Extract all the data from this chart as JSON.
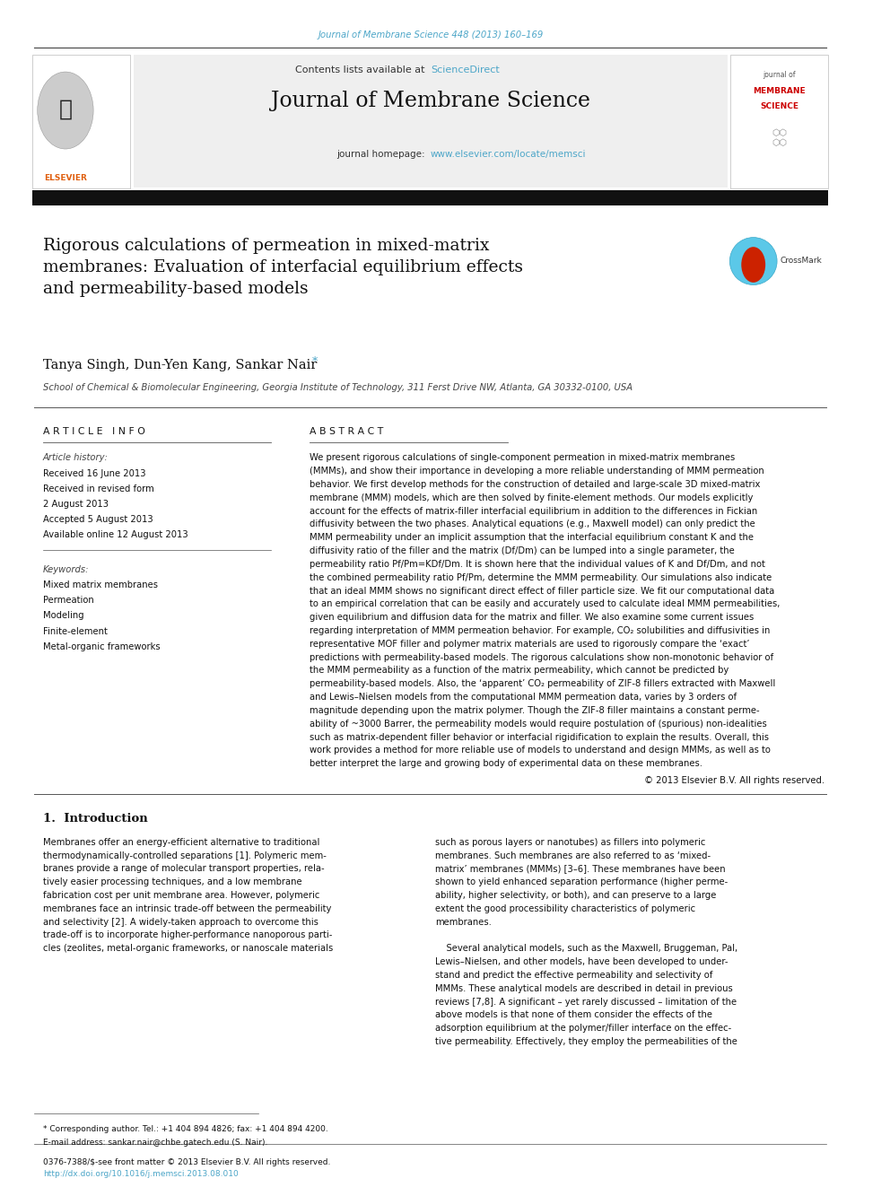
{
  "page_width": 9.92,
  "page_height": 13.23,
  "bg_color": "#ffffff",
  "journal_ref_text": "Journal of Membrane Science 448 (2013) 160–169",
  "journal_ref_color": "#4da6c8",
  "header_bg": "#efefef",
  "contents_text": "Contents lists available at ",
  "sciencedirect_text": "ScienceDirect",
  "sciencedirect_color": "#4da6c8",
  "journal_title": "Journal of Membrane Science",
  "journal_homepage_text": "journal homepage: ",
  "journal_url": "www.elsevier.com/locate/memsci",
  "journal_url_color": "#4da6c8",
  "thick_bar_color": "#111111",
  "paper_title": "Rigorous calculations of permeation in mixed-matrix\nmembranes: Evaluation of interfacial equilibrium effects\nand permeability-based models",
  "authors": "Tanya Singh, Dun-Yen Kang, Sankar Nair",
  "affiliation": "School of Chemical & Biomolecular Engineering, Georgia Institute of Technology, 311 Ferst Drive NW, Atlanta, GA 30332-0100, USA",
  "article_info_title": "A R T I C L E   I N F O",
  "abstract_title": "A B S T R A C T",
  "article_history_label": "Article history:",
  "article_history_lines": [
    "Received 16 June 2013",
    "Received in revised form",
    "2 August 2013",
    "Accepted 5 August 2013",
    "Available online 12 August 2013"
  ],
  "keywords_label": "Keywords:",
  "keywords": [
    "Mixed matrix membranes",
    "Permeation",
    "Modeling",
    "Finite-element",
    "Metal-organic frameworks"
  ],
  "intro_title": "1.  Introduction",
  "footnote_line1": "* Corresponding author. Tel.: +1 404 894 4826; fax: +1 404 894 4200.",
  "footnote_line2": "E-mail address: sankar.nair@chbe.gatech.edu (S. Nair).",
  "footer_left": "0376-7388/$-see front matter © 2013 Elsevier B.V. All rights reserved.",
  "footer_doi": "http://dx.doi.org/10.1016/j.memsci.2013.08.010",
  "abstract_lines": [
    "We present rigorous calculations of single-component permeation in mixed-matrix membranes",
    "(MMMs), and show their importance in developing a more reliable understanding of MMM permeation",
    "behavior. We first develop methods for the construction of detailed and large-scale 3D mixed-matrix",
    "membrane (MMM) models, which are then solved by finite-element methods. Our models explicitly",
    "account for the effects of matrix-filler interfacial equilibrium in addition to the differences in Fickian",
    "diffusivity between the two phases. Analytical equations (e.g., Maxwell model) can only predict the",
    "MMM permeability under an implicit assumption that the interfacial equilibrium constant K and the",
    "diffusivity ratio of the filler and the matrix (Df/Dm) can be lumped into a single parameter, the",
    "permeability ratio Pf/Pm=KDf/Dm. It is shown here that the individual values of K and Df/Dm, and not",
    "the combined permeability ratio Pf/Pm, determine the MMM permeability. Our simulations also indicate",
    "that an ideal MMM shows no significant direct effect of filler particle size. We fit our computational data",
    "to an empirical correlation that can be easily and accurately used to calculate ideal MMM permeabilities,",
    "given equilibrium and diffusion data for the matrix and filler. We also examine some current issues",
    "regarding interpretation of MMM permeation behavior. For example, CO₂ solubilities and diffusivities in",
    "representative MOF filler and polymer matrix materials are used to rigorously compare the ‘exact’",
    "predictions with permeability-based models. The rigorous calculations show non-monotonic behavior of",
    "the MMM permeability as a function of the matrix permeability, which cannot be predicted by",
    "permeability-based models. Also, the ‘apparent’ CO₂ permeability of ZIF-8 fillers extracted with Maxwell",
    "and Lewis–Nielsen models from the computational MMM permeation data, varies by 3 orders of",
    "magnitude depending upon the matrix polymer. Though the ZIF-8 filler maintains a constant perme-",
    "ability of ~3000 Barrer, the permeability models would require postulation of (spurious) non-idealities",
    "such as matrix-dependent filler behavior or interfacial rigidification to explain the results. Overall, this",
    "work provides a method for more reliable use of models to understand and design MMMs, as well as to",
    "better interpret the large and growing body of experimental data on these membranes."
  ],
  "intro_col1_lines": [
    "Membranes offer an energy-efficient alternative to traditional",
    "thermodynamically-controlled separations [1]. Polymeric mem-",
    "branes provide a range of molecular transport properties, rela-",
    "tively easier processing techniques, and a low membrane",
    "fabrication cost per unit membrane area. However, polymeric",
    "membranes face an intrinsic trade-off between the permeability",
    "and selectivity [2]. A widely-taken approach to overcome this",
    "trade-off is to incorporate higher-performance nanoporous parti-",
    "cles (zeolites, metal-organic frameworks, or nanoscale materials"
  ],
  "intro_col2_lines": [
    "such as porous layers or nanotubes) as fillers into polymeric",
    "membranes. Such membranes are also referred to as ‘mixed-",
    "matrix’ membranes (MMMs) [3–6]. These membranes have been",
    "shown to yield enhanced separation performance (higher perme-",
    "ability, higher selectivity, or both), and can preserve to a large",
    "extent the good processibility characteristics of polymeric",
    "membranes.",
    "",
    "    Several analytical models, such as the Maxwell, Bruggeman, Pal,",
    "Lewis–Nielsen, and other models, have been developed to under-",
    "stand and predict the effective permeability and selectivity of",
    "MMMs. These analytical models are described in detail in previous",
    "reviews [7,8]. A significant – yet rarely discussed – limitation of the",
    "above models is that none of them consider the effects of the",
    "adsorption equilibrium at the polymer/filler interface on the effec-",
    "tive permeability. Effectively, they employ the permeabilities of the"
  ]
}
